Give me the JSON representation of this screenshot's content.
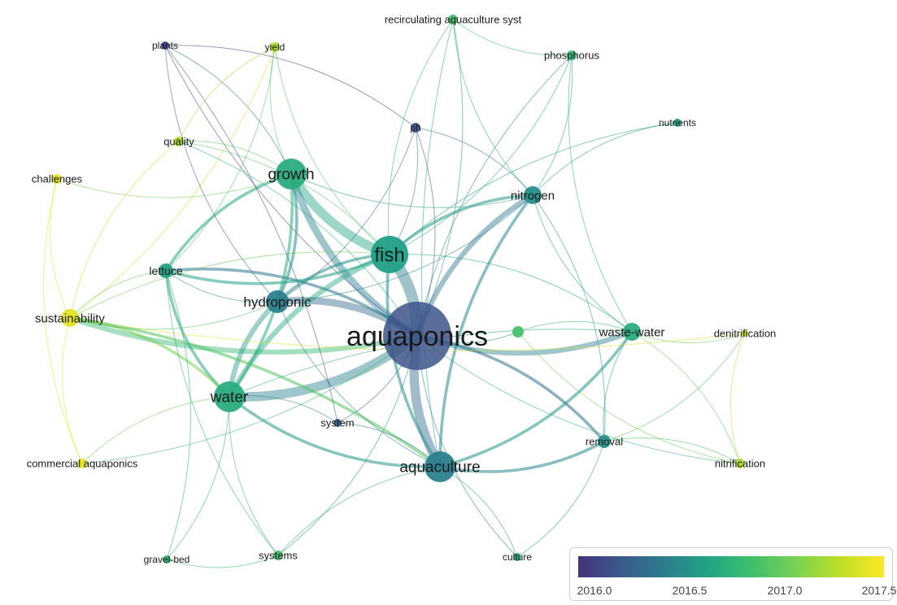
{
  "network": {
    "nodes": [
      {
        "id": "aquaponics",
        "label": "aquaponics",
        "year": 2016.1,
        "weight": 10
      },
      {
        "id": "fish",
        "label": "fish",
        "year": 2016.6,
        "weight": 6
      },
      {
        "id": "growth",
        "label": "growth",
        "year": 2016.7,
        "weight": 5
      },
      {
        "id": "water",
        "label": "water",
        "year": 2016.7,
        "weight": 5
      },
      {
        "id": "aquaculture",
        "label": "aquaculture",
        "year": 2016.4,
        "weight": 5
      },
      {
        "id": "hydroponic",
        "label": "hydroponic",
        "year": 2016.4,
        "weight": 4
      },
      {
        "id": "nitrogen",
        "label": "nitrogen",
        "year": 2016.5,
        "weight": 3
      },
      {
        "id": "waste-water",
        "label": "waste-water",
        "year": 2016.7,
        "weight": 3
      },
      {
        "id": "lettuce",
        "label": "lettuce",
        "year": 2016.6,
        "weight": 2
      },
      {
        "id": "sustainability",
        "label": "sustainability",
        "year": 2017.5,
        "weight": 3
      },
      {
        "id": "removal",
        "label": "removal",
        "year": 2016.5,
        "weight": 2
      },
      {
        "id": "ph",
        "label": "ph",
        "year": 2016.1,
        "weight": 1
      },
      {
        "id": "nutrients",
        "label": "nutrients",
        "year": 2016.6,
        "weight": 1
      },
      {
        "id": "phosphorus",
        "label": "phosphorus",
        "year": 2016.8,
        "weight": 1
      },
      {
        "id": "recirculating",
        "label": "recirculating aquaculture syst",
        "year": 2016.9,
        "weight": 1
      },
      {
        "id": "yield",
        "label": "yield",
        "year": 2017.3,
        "weight": 1
      },
      {
        "id": "plants",
        "label": "plants",
        "year": 2016.0,
        "weight": 1
      },
      {
        "id": "quality",
        "label": "quality",
        "year": 2017.3,
        "weight": 1
      },
      {
        "id": "challenges",
        "label": "challenges",
        "year": 2017.5,
        "weight": 1
      },
      {
        "id": "commercial",
        "label": "commercial aquaponics",
        "year": 2017.5,
        "weight": 1
      },
      {
        "id": "system",
        "label": "system",
        "year": 2016.2,
        "weight": 1
      },
      {
        "id": "systems",
        "label": "systems",
        "year": 2016.9,
        "weight": 1
      },
      {
        "id": "gravel-bed",
        "label": "gravel-bed",
        "year": 2016.8,
        "weight": 1
      },
      {
        "id": "culture",
        "label": "culture",
        "year": 2016.7,
        "weight": 1
      },
      {
        "id": "nitrification",
        "label": "nitrification",
        "year": 2017.3,
        "weight": 1
      },
      {
        "id": "denitrification",
        "label": "denitrification",
        "year": 2017.4,
        "weight": 1
      },
      {
        "id": "unlabeled",
        "label": "",
        "year": 2016.9,
        "weight": 1
      }
    ],
    "edges": [
      [
        "aquaponics",
        "fish",
        6
      ],
      [
        "aquaponics",
        "water",
        5
      ],
      [
        "aquaponics",
        "aquaculture",
        5
      ],
      [
        "aquaponics",
        "growth",
        4
      ],
      [
        "aquaponics",
        "hydroponic",
        4
      ],
      [
        "aquaponics",
        "nitrogen",
        3
      ],
      [
        "aquaponics",
        "waste-water",
        3
      ],
      [
        "aquaponics",
        "sustainability",
        3
      ],
      [
        "aquaponics",
        "lettuce",
        2
      ],
      [
        "aquaponics",
        "removal",
        2
      ],
      [
        "aquaponics",
        "ph",
        1
      ],
      [
        "aquaponics",
        "phosphorus",
        1
      ],
      [
        "aquaponics",
        "recirculating",
        1
      ],
      [
        "aquaponics",
        "systems",
        1
      ],
      [
        "aquaponics",
        "culture",
        1
      ],
      [
        "aquaponics",
        "system",
        1
      ],
      [
        "aquaponics",
        "nitrification",
        1
      ],
      [
        "aquaponics",
        "commercial",
        1
      ],
      [
        "aquaponics",
        "unlabeled",
        1
      ],
      [
        "aquaponics",
        "plants",
        1
      ],
      [
        "aquaponics",
        "quality",
        1
      ],
      [
        "fish",
        "growth",
        5
      ],
      [
        "fish",
        "water",
        3
      ],
      [
        "fish",
        "nitrogen",
        2
      ],
      [
        "fish",
        "hydroponic",
        2
      ],
      [
        "fish",
        "lettuce",
        2
      ],
      [
        "fish",
        "aquaculture",
        2
      ],
      [
        "fish",
        "yield",
        1
      ],
      [
        "fish",
        "ph",
        1
      ],
      [
        "fish",
        "recirculating",
        1
      ],
      [
        "fish",
        "phosphorus",
        1
      ],
      [
        "fish",
        "nutrients",
        1
      ],
      [
        "fish",
        "quality",
        1
      ],
      [
        "fish",
        "waste-water",
        1
      ],
      [
        "fish",
        "sustainability",
        1
      ],
      [
        "growth",
        "water",
        2
      ],
      [
        "growth",
        "lettuce",
        2
      ],
      [
        "growth",
        "hydroponic",
        2
      ],
      [
        "growth",
        "quality",
        1
      ],
      [
        "growth",
        "yield",
        1
      ],
      [
        "growth",
        "plants",
        1
      ],
      [
        "growth",
        "challenges",
        1
      ],
      [
        "growth",
        "nitrogen",
        1
      ],
      [
        "water",
        "hydroponic",
        3
      ],
      [
        "water",
        "aquaculture",
        2
      ],
      [
        "water",
        "lettuce",
        2
      ],
      [
        "water",
        "sustainability",
        2
      ],
      [
        "water",
        "system",
        1
      ],
      [
        "water",
        "systems",
        1
      ],
      [
        "water",
        "gravel-bed",
        1
      ],
      [
        "water",
        "commercial",
        1
      ],
      [
        "water",
        "waste-water",
        1
      ],
      [
        "aquaculture",
        "waste-water",
        2
      ],
      [
        "aquaculture",
        "nitrogen",
        2
      ],
      [
        "aquaculture",
        "removal",
        2
      ],
      [
        "aquaculture",
        "recirculating",
        1
      ],
      [
        "aquaculture",
        "systems",
        1
      ],
      [
        "aquaculture",
        "culture",
        1
      ],
      [
        "aquaculture",
        "sustainability",
        2
      ],
      [
        "aquaculture",
        "hydroponic",
        1
      ],
      [
        "aquaculture",
        "system",
        1
      ],
      [
        "hydroponic",
        "lettuce",
        1
      ],
      [
        "hydroponic",
        "nitrogen",
        1
      ],
      [
        "hydroponic",
        "sustainability",
        1
      ],
      [
        "nitrogen",
        "phosphorus",
        1
      ],
      [
        "nitrogen",
        "nutrients",
        1
      ],
      [
        "nitrogen",
        "waste-water",
        1
      ],
      [
        "nitrogen",
        "removal",
        1
      ],
      [
        "nitrogen",
        "ph",
        1
      ],
      [
        "nitrogen",
        "recirculating",
        1
      ],
      [
        "waste-water",
        "removal",
        1
      ],
      [
        "waste-water",
        "nitrification",
        1
      ],
      [
        "waste-water",
        "denitrification",
        1
      ],
      [
        "waste-water",
        "phosphorus",
        1
      ],
      [
        "waste-water",
        "unlabeled",
        1
      ],
      [
        "sustainability",
        "challenges",
        1
      ],
      [
        "sustainability",
        "commercial",
        1
      ],
      [
        "sustainability",
        "quality",
        1
      ],
      [
        "sustainability",
        "yield",
        1
      ],
      [
        "sustainability",
        "lettuce",
        1
      ],
      [
        "sustainability",
        "denitrification",
        1
      ],
      [
        "removal",
        "nitrification",
        1
      ],
      [
        "removal",
        "denitrification",
        1
      ],
      [
        "plants",
        "ph",
        1
      ],
      [
        "plants",
        "hydroponic",
        1
      ],
      [
        "plants",
        "system",
        1
      ],
      [
        "yield",
        "quality",
        1
      ],
      [
        "yield",
        "lettuce",
        1
      ],
      [
        "challenges",
        "commercial",
        1
      ],
      [
        "lettuce",
        "gravel-bed",
        1
      ],
      [
        "lettuce",
        "systems",
        1
      ],
      [
        "systems",
        "gravel-bed",
        1
      ],
      [
        "recirculating",
        "phosphorus",
        1
      ],
      [
        "ph",
        "hydroponic",
        1
      ],
      [
        "culture",
        "removal",
        1
      ],
      [
        "nitrification",
        "denitrification",
        1
      ],
      [
        "unlabeled",
        "nitrification",
        1
      ]
    ]
  },
  "scale": {
    "ticks": [
      "2016.0",
      "2016.5",
      "2017.0",
      "2017.5"
    ],
    "colors": [
      "#46327e",
      "#3b5b8c",
      "#2c7e8e",
      "#21a585",
      "#3fbf6c",
      "#7ad151",
      "#bddf26",
      "#fde725"
    ]
  }
}
